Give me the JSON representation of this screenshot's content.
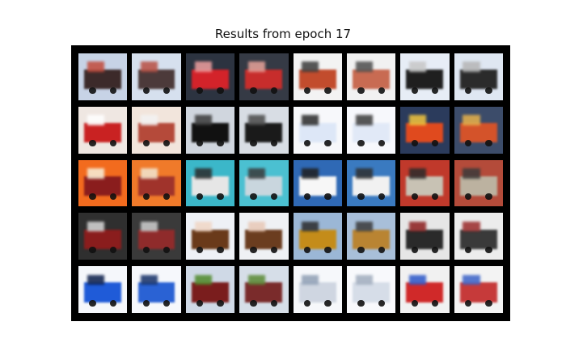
{
  "figure": {
    "title": "Results from epoch 17"
  },
  "grid": {
    "rows": 5,
    "cols": 8,
    "background": "#000000",
    "pairs_per_row": 4
  },
  "tiles": [
    {
      "name": "truck-row1-col1",
      "bg": "#c7d3e6",
      "main": "#3c2a2a",
      "accent": "#c24a3a"
    },
    {
      "name": "truck-row1-col2",
      "bg": "#d6e0ee",
      "main": "#4c3a3a",
      "accent": "#b84e42"
    },
    {
      "name": "truck-row1-col3",
      "bg": "#2c3340",
      "main": "#d3232a",
      "accent": "#f0a0a0"
    },
    {
      "name": "truck-row1-col4",
      "bg": "#353a45",
      "main": "#c72d2c",
      "accent": "#e8a39a"
    },
    {
      "name": "truck-row1-col5",
      "bg": "#f3f3f3",
      "main": "#c24c2d",
      "accent": "#3a3a3a"
    },
    {
      "name": "truck-row1-col6",
      "bg": "#f1f1f1",
      "main": "#c86b52",
      "accent": "#4c4c4c"
    },
    {
      "name": "truck-row1-col7",
      "bg": "#e7edf6",
      "main": "#1f1f1f",
      "accent": "#c7c7c7"
    },
    {
      "name": "truck-row1-col8",
      "bg": "#dfe7f2",
      "main": "#2b2b2b",
      "accent": "#b5b5b5"
    },
    {
      "name": "truck-row2-col1",
      "bg": "#efe7e2",
      "main": "#c92222",
      "accent": "#ffffff"
    },
    {
      "name": "truck-row2-col2",
      "bg": "#f2e5dc",
      "main": "#b54a3a",
      "accent": "#f3f3f3"
    },
    {
      "name": "truck-row2-col3",
      "bg": "#d0d6de",
      "main": "#111111",
      "accent": "#3a3a3a"
    },
    {
      "name": "truck-row2-col4",
      "bg": "#d8dde4",
      "main": "#1a1a1a",
      "accent": "#4a4a4a"
    },
    {
      "name": "truck-row2-col5",
      "bg": "#f7f8fb",
      "main": "#dde7f7",
      "accent": "#2a2a2a"
    },
    {
      "name": "truck-row2-col6",
      "bg": "#f7f8fc",
      "main": "#e1e9f7",
      "accent": "#3b3b3b"
    },
    {
      "name": "truck-row2-col7",
      "bg": "#2b3b5c",
      "main": "#e04a1e",
      "accent": "#f2c53d"
    },
    {
      "name": "truck-row2-col8",
      "bg": "#3c4c6a",
      "main": "#d4532a",
      "accent": "#e8b24a"
    },
    {
      "name": "truck-row3-col1",
      "bg": "#f26b1e",
      "main": "#8a1d1d",
      "accent": "#f7f1dc"
    },
    {
      "name": "truck-row3-col2",
      "bg": "#f07a2a",
      "main": "#a0332b",
      "accent": "#f2e7d2"
    },
    {
      "name": "truck-row3-col3",
      "bg": "#3bb7c9",
      "main": "#e6e6e6",
      "accent": "#2b2b2b"
    },
    {
      "name": "truck-row3-col4",
      "bg": "#4bc0d1",
      "main": "#c9d6de",
      "accent": "#3a3a3a"
    },
    {
      "name": "truck-row3-col5",
      "bg": "#2f69b5",
      "main": "#f7f7f7",
      "accent": "#1f1f1f"
    },
    {
      "name": "truck-row3-col6",
      "bg": "#3a7ac0",
      "main": "#f1f1f1",
      "accent": "#2f2f2f"
    },
    {
      "name": "truck-row3-col7",
      "bg": "#c0392b",
      "main": "#c8c2b4",
      "accent": "#2b2b2b"
    },
    {
      "name": "truck-row3-col8",
      "bg": "#b44b3a",
      "main": "#bcb2a0",
      "accent": "#3a3a3a"
    },
    {
      "name": "truck-row4-col1",
      "bg": "#2f2f2f",
      "main": "#8a1d1d",
      "accent": "#d9d9d9"
    },
    {
      "name": "truck-row4-col2",
      "bg": "#3a3a3a",
      "main": "#8f2b2b",
      "accent": "#cfcfcf"
    },
    {
      "name": "truck-row4-col3",
      "bg": "#eef1f6",
      "main": "#6a3a1a",
      "accent": "#f0d6c5"
    },
    {
      "name": "truck-row4-col4",
      "bg": "#eff1f4",
      "main": "#6b3d1f",
      "accent": "#e8c8b6"
    },
    {
      "name": "truck-row4-col5",
      "bg": "#9bb7d6",
      "main": "#c48c1a",
      "accent": "#2b2b2b"
    },
    {
      "name": "truck-row4-col6",
      "bg": "#a8bfd9",
      "main": "#b98432",
      "accent": "#3a3a3a"
    },
    {
      "name": "truck-row4-col7",
      "bg": "#e6e6e6",
      "main": "#2a2a2a",
      "accent": "#8c1d1d"
    },
    {
      "name": "truck-row4-col8",
      "bg": "#ececec",
      "main": "#3a3a3a",
      "accent": "#9a2a2a"
    },
    {
      "name": "truck-row5-col1",
      "bg": "#f5f7fb",
      "main": "#1f5bd8",
      "accent": "#0a1d4a"
    },
    {
      "name": "truck-row5-col2",
      "bg": "#f6f8fc",
      "main": "#2a62d4",
      "accent": "#153067"
    },
    {
      "name": "truck-row5-col3",
      "bg": "#cfd9e6",
      "main": "#7a1d1d",
      "accent": "#4f8a2a"
    },
    {
      "name": "truck-row5-col4",
      "bg": "#d6dee8",
      "main": "#7a2b2b",
      "accent": "#5a8a34"
    },
    {
      "name": "truck-row5-col5",
      "bg": "#f6f8fb",
      "main": "#cfd6e1",
      "accent": "#8f9fb4"
    },
    {
      "name": "truck-row5-col6",
      "bg": "#f8f9fc",
      "main": "#d6dde8",
      "accent": "#a0acbd"
    },
    {
      "name": "truck-row5-col7",
      "bg": "#f1f1f1",
      "main": "#d02929",
      "accent": "#2b57c9"
    },
    {
      "name": "truck-row5-col8",
      "bg": "#f3f3f3",
      "main": "#c63a3a",
      "accent": "#3a62c8"
    }
  ]
}
